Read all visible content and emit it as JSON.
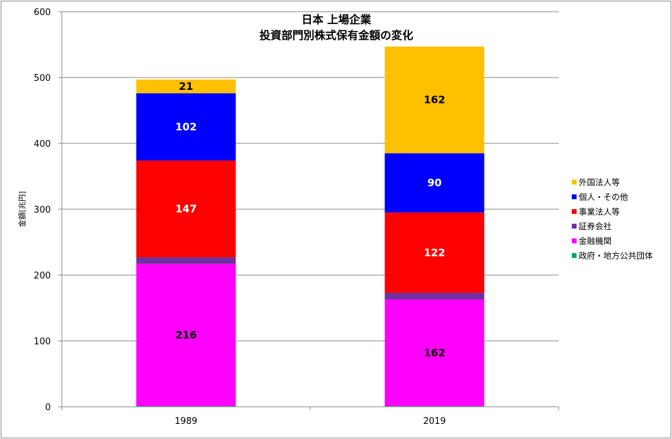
{
  "chart_data": {
    "type": "bar",
    "stacked": true,
    "title_lines": [
      "日本 上場企業",
      "投資部門別株式保有金額の変化"
    ],
    "ylabel": "金額[兆円]",
    "xlabel": "",
    "ylim": [
      0,
      600
    ],
    "yticks": [
      0,
      100,
      200,
      300,
      400,
      500,
      600
    ],
    "categories": [
      "1989",
      "2019"
    ],
    "grid": true,
    "legend_position": "right",
    "series": [
      {
        "name": "政府・地方公共団体",
        "color": "#00a86b",
        "values": [
          1,
          1
        ],
        "labels": [
          "",
          ""
        ],
        "label_color": "#000000"
      },
      {
        "name": "金融機関",
        "color": "#ff00ff",
        "values": [
          216,
          162
        ],
        "labels": [
          "216",
          "162"
        ],
        "label_color": "#000000"
      },
      {
        "name": "証券会社",
        "color": "#7030a0",
        "values": [
          10,
          10
        ],
        "labels": [
          "",
          ""
        ],
        "label_color": "#ffffff"
      },
      {
        "name": "事業法人等",
        "color": "#ff0000",
        "values": [
          147,
          122
        ],
        "labels": [
          "147",
          "122"
        ],
        "label_color": "#ffffff"
      },
      {
        "name": "個人・その他",
        "color": "#0000ff",
        "values": [
          102,
          90
        ],
        "labels": [
          "102",
          "90"
        ],
        "label_color": "#ffffff"
      },
      {
        "name": "外国法人等",
        "color": "#ffc000",
        "values": [
          21,
          162
        ],
        "labels": [
          "21",
          "162"
        ],
        "label_color": "#000000"
      }
    ],
    "legend_order": [
      "外国法人等",
      "個人・その他",
      "事業法人等",
      "証券会社",
      "金融機関",
      "政府・地方公共団体"
    ]
  }
}
